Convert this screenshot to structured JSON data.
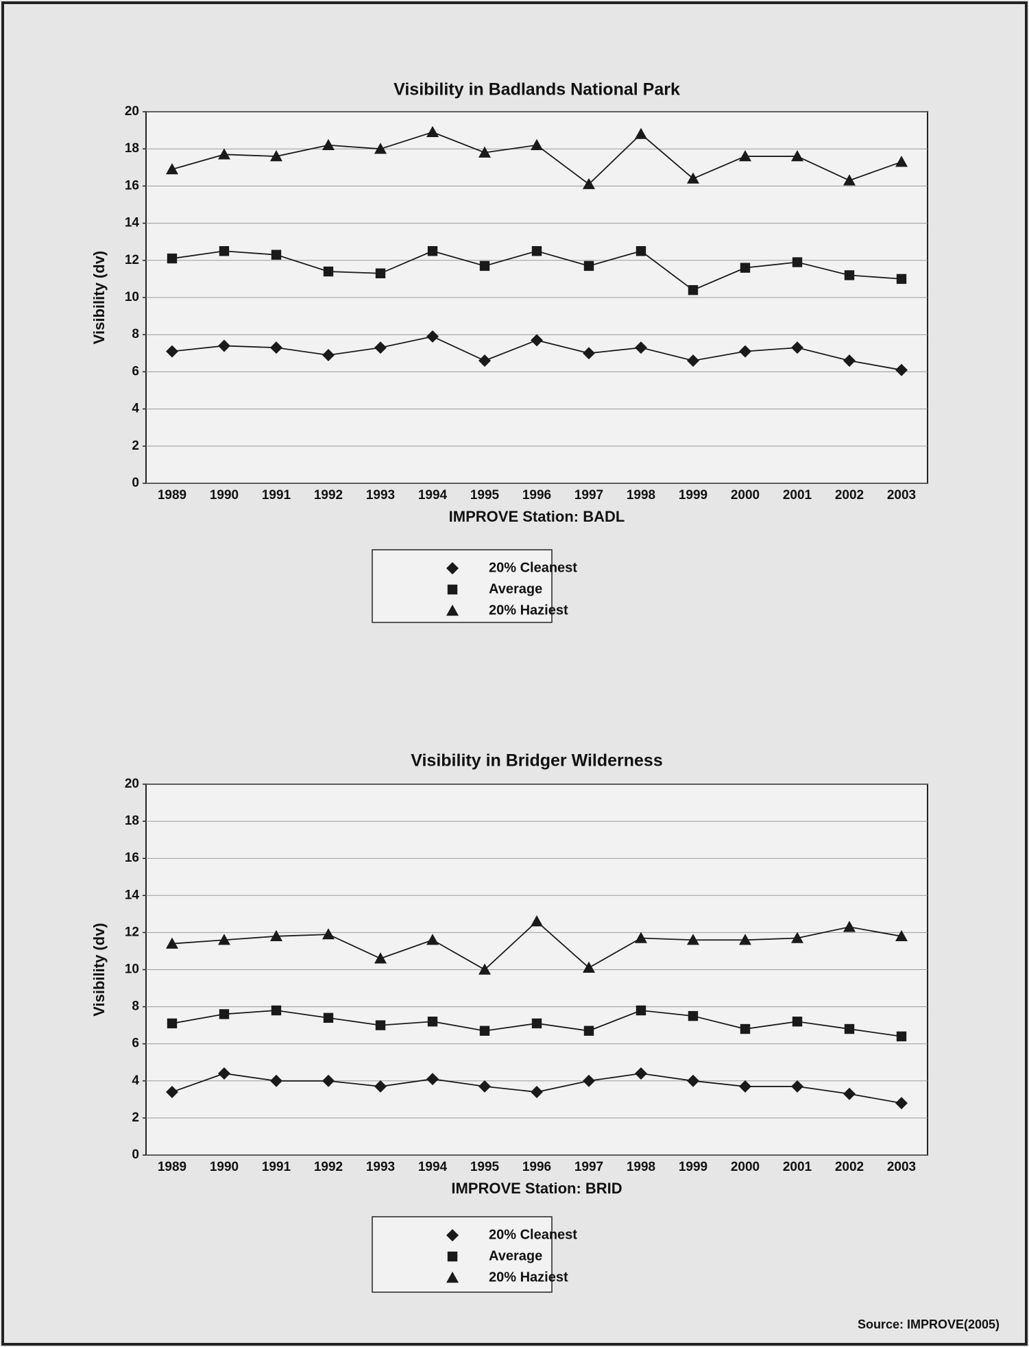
{
  "chart_data": [
    {
      "type": "line",
      "title": "Visibility in Badlands National Park",
      "x_label": "IMPROVE Station:  BADL",
      "y_label": "Visibility (dv)",
      "categories": [
        "1989",
        "1990",
        "1991",
        "1992",
        "1993",
        "1994",
        "1995",
        "1996",
        "1997",
        "1998",
        "1999",
        "2000",
        "2001",
        "2002",
        "2003"
      ],
      "ylim": [
        0,
        20
      ],
      "yticks": [
        0,
        2,
        4,
        6,
        8,
        10,
        12,
        14,
        16,
        18,
        20
      ],
      "grid": true,
      "series": [
        {
          "name": "20% Cleanest",
          "color": "#1a1a1a",
          "marker": "diamond",
          "values": [
            7.1,
            7.4,
            7.3,
            6.9,
            7.3,
            7.9,
            6.6,
            7.7,
            7.0,
            7.3,
            6.6,
            7.1,
            7.3,
            6.6,
            6.1
          ]
        },
        {
          "name": "Average",
          "color": "#1a1a1a",
          "marker": "square",
          "values": [
            12.1,
            12.5,
            12.3,
            11.4,
            11.3,
            12.5,
            11.7,
            12.5,
            11.7,
            12.5,
            10.4,
            11.6,
            11.9,
            11.2,
            11.0
          ]
        },
        {
          "name": "20% Haziest",
          "color": "#1a1a1a",
          "marker": "triangle",
          "values": [
            16.9,
            17.7,
            17.6,
            18.2,
            18.0,
            18.9,
            17.8,
            18.2,
            16.1,
            18.8,
            16.4,
            17.6,
            17.6,
            16.3,
            17.3
          ]
        }
      ]
    },
    {
      "type": "line",
      "title": "Visibility in Bridger Wilderness",
      "x_label": "IMPROVE Station:  BRID",
      "y_label": "Visibility (dv)",
      "categories": [
        "1989",
        "1990",
        "1991",
        "1992",
        "1993",
        "1994",
        "1995",
        "1996",
        "1997",
        "1998",
        "1999",
        "2000",
        "2001",
        "2002",
        "2003"
      ],
      "ylim": [
        0,
        20
      ],
      "yticks": [
        0,
        2,
        4,
        6,
        8,
        10,
        12,
        14,
        16,
        18,
        20
      ],
      "grid": true,
      "series": [
        {
          "name": "20% Cleanest",
          "color": "#1a1a1a",
          "marker": "diamond",
          "values": [
            3.4,
            4.4,
            4.0,
            4.0,
            3.7,
            4.1,
            3.7,
            3.4,
            4.0,
            4.4,
            4.0,
            3.7,
            3.7,
            3.3,
            2.8
          ]
        },
        {
          "name": "Average",
          "color": "#1a1a1a",
          "marker": "square",
          "values": [
            7.1,
            7.6,
            7.8,
            7.4,
            7.0,
            7.2,
            6.7,
            7.1,
            6.7,
            7.8,
            7.5,
            6.8,
            7.2,
            6.8,
            6.4
          ]
        },
        {
          "name": "20% Haziest",
          "color": "#1a1a1a",
          "marker": "triangle",
          "values": [
            11.4,
            11.6,
            11.8,
            11.9,
            10.6,
            11.6,
            10.0,
            12.6,
            10.1,
            11.7,
            11.6,
            11.6,
            11.7,
            12.3,
            11.8
          ]
        }
      ]
    }
  ],
  "source": "Source: IMPROVE(2005)"
}
